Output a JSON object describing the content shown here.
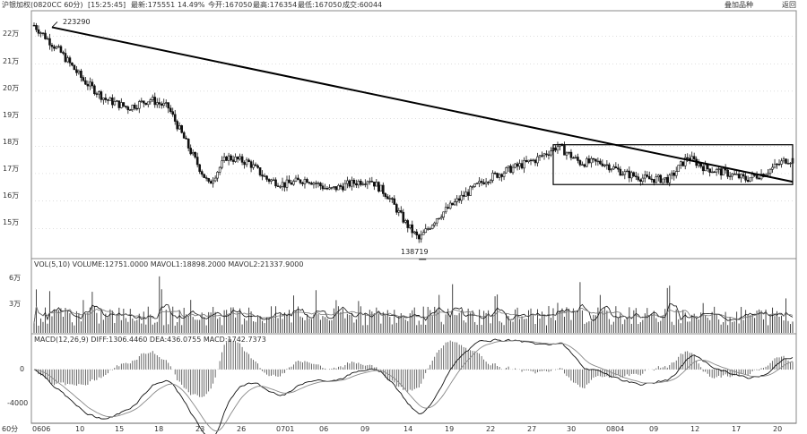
{
  "header": {
    "name_code": "沪银加权(0820CC 60分)",
    "time": "[15:25:45]",
    "latest": "最新:175551",
    "change": "14.49%",
    "open": "今开:167050",
    "high": "最高:176354",
    "low": "最低:167050",
    "position": "成交:60044",
    "overlay_button": "叠加品种",
    "back_button": "返回"
  },
  "price_panel": {
    "y_ticks": [
      "22万",
      "21万",
      "20万",
      "19万",
      "18万",
      "17万",
      "16万",
      "15万"
    ],
    "annotations": {
      "high": "223290",
      "low": "138719"
    }
  },
  "volume_panel": {
    "label": "VOL(5,10) VOLUME:12751.0000 MAVOL1:18898.2000 MAVOL2:21337.9000",
    "y_ticks": [
      "6万",
      "3万"
    ]
  },
  "macd_panel": {
    "label": "MACD(12,26,9) DIFF:1306.4460 DEA:436.0755 MACD:1742.7373",
    "y_ticks": [
      "0",
      "-4000"
    ]
  },
  "x_axis": {
    "corner": "60分",
    "labels": [
      "0606",
      "10",
      "15",
      "18",
      "23",
      "26",
      "0701",
      "06",
      "09",
      "14",
      "19",
      "22",
      "27",
      "30",
      "0804",
      "09",
      "12",
      "17",
      "20"
    ]
  },
  "chart_data": {
    "type": "candlestick",
    "price": {
      "ylim": [
        140000,
        228000
      ],
      "anchors": [
        [
          0,
          224000
        ],
        [
          12,
          214000
        ],
        [
          22,
          204000
        ],
        [
          32,
          197000
        ],
        [
          42,
          194000
        ],
        [
          52,
          197000
        ],
        [
          60,
          194000
        ],
        [
          70,
          178000
        ],
        [
          78,
          166000
        ],
        [
          86,
          176000
        ],
        [
          96,
          174000
        ],
        [
          104,
          168000
        ],
        [
          112,
          166000
        ],
        [
          122,
          168000
        ],
        [
          132,
          164000
        ],
        [
          140,
          166000
        ],
        [
          150,
          168000
        ],
        [
          158,
          162000
        ],
        [
          166,
          152000
        ],
        [
          172,
          146000
        ],
        [
          180,
          154000
        ],
        [
          192,
          162000
        ],
        [
          202,
          168000
        ],
        [
          214,
          172000
        ],
        [
          224,
          175000
        ],
        [
          234,
          180000
        ],
        [
          244,
          174000
        ],
        [
          254,
          174000
        ],
        [
          264,
          170000
        ],
        [
          274,
          168000
        ],
        [
          284,
          168000
        ],
        [
          292,
          176000
        ],
        [
          300,
          172000
        ],
        [
          310,
          170000
        ],
        [
          318,
          168000
        ],
        [
          326,
          170000
        ],
        [
          336,
          175000
        ]
      ],
      "n": 340,
      "high_value": 223290,
      "low_value": 138719
    },
    "trendline": {
      "from": [
        8,
        223290
      ],
      "to": [
        339,
        167000
      ]
    },
    "box": {
      "x_from": 232,
      "x_to": 339,
      "y_from": 166000,
      "y_to": 180500
    },
    "volume": {
      "ylim": [
        0,
        70000
      ]
    },
    "macd": {
      "ylim": [
        -5500,
        2500
      ]
    }
  },
  "colors": {
    "line": "#111111",
    "grid": "#bdbdbd",
    "bar": "#444444",
    "bg": "#ffffff"
  }
}
